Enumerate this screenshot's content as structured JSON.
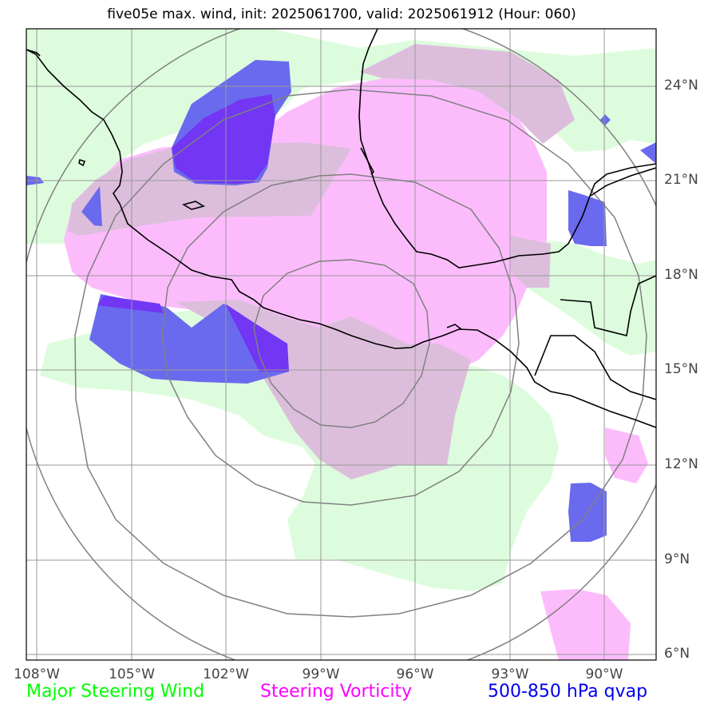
{
  "title": "five05e max. wind, init: 2025061700, valid: 2025061912 (Hour: 060)",
  "lat_labels": [
    "24°N",
    "21°N",
    "18°N",
    "15°N",
    "12°N",
    "9°N",
    "6°N"
  ],
  "lon_labels": [
    "108°W",
    "105°W",
    "102°W",
    "99°W",
    "96°W",
    "93°W",
    "90°W"
  ],
  "legend": {
    "wind": "Major Steering Wind",
    "vorticity": "Steering Vorticity",
    "qvap": "500-850 hPa qvap"
  },
  "colors": {
    "wind_fill": "#ddfcdd",
    "vorticity_fill": "#fcbcfc",
    "overlap_fill": "#dcbedc",
    "qvap_fill": "#6a6aee",
    "qvap_dark": "#7236f4",
    "legend_wind": "#00ff00",
    "legend_vorticity": "#ff00ff",
    "legend_qvap": "#0000ee",
    "grid": "#999999",
    "ring": "#808080",
    "coast": "#000000"
  }
}
